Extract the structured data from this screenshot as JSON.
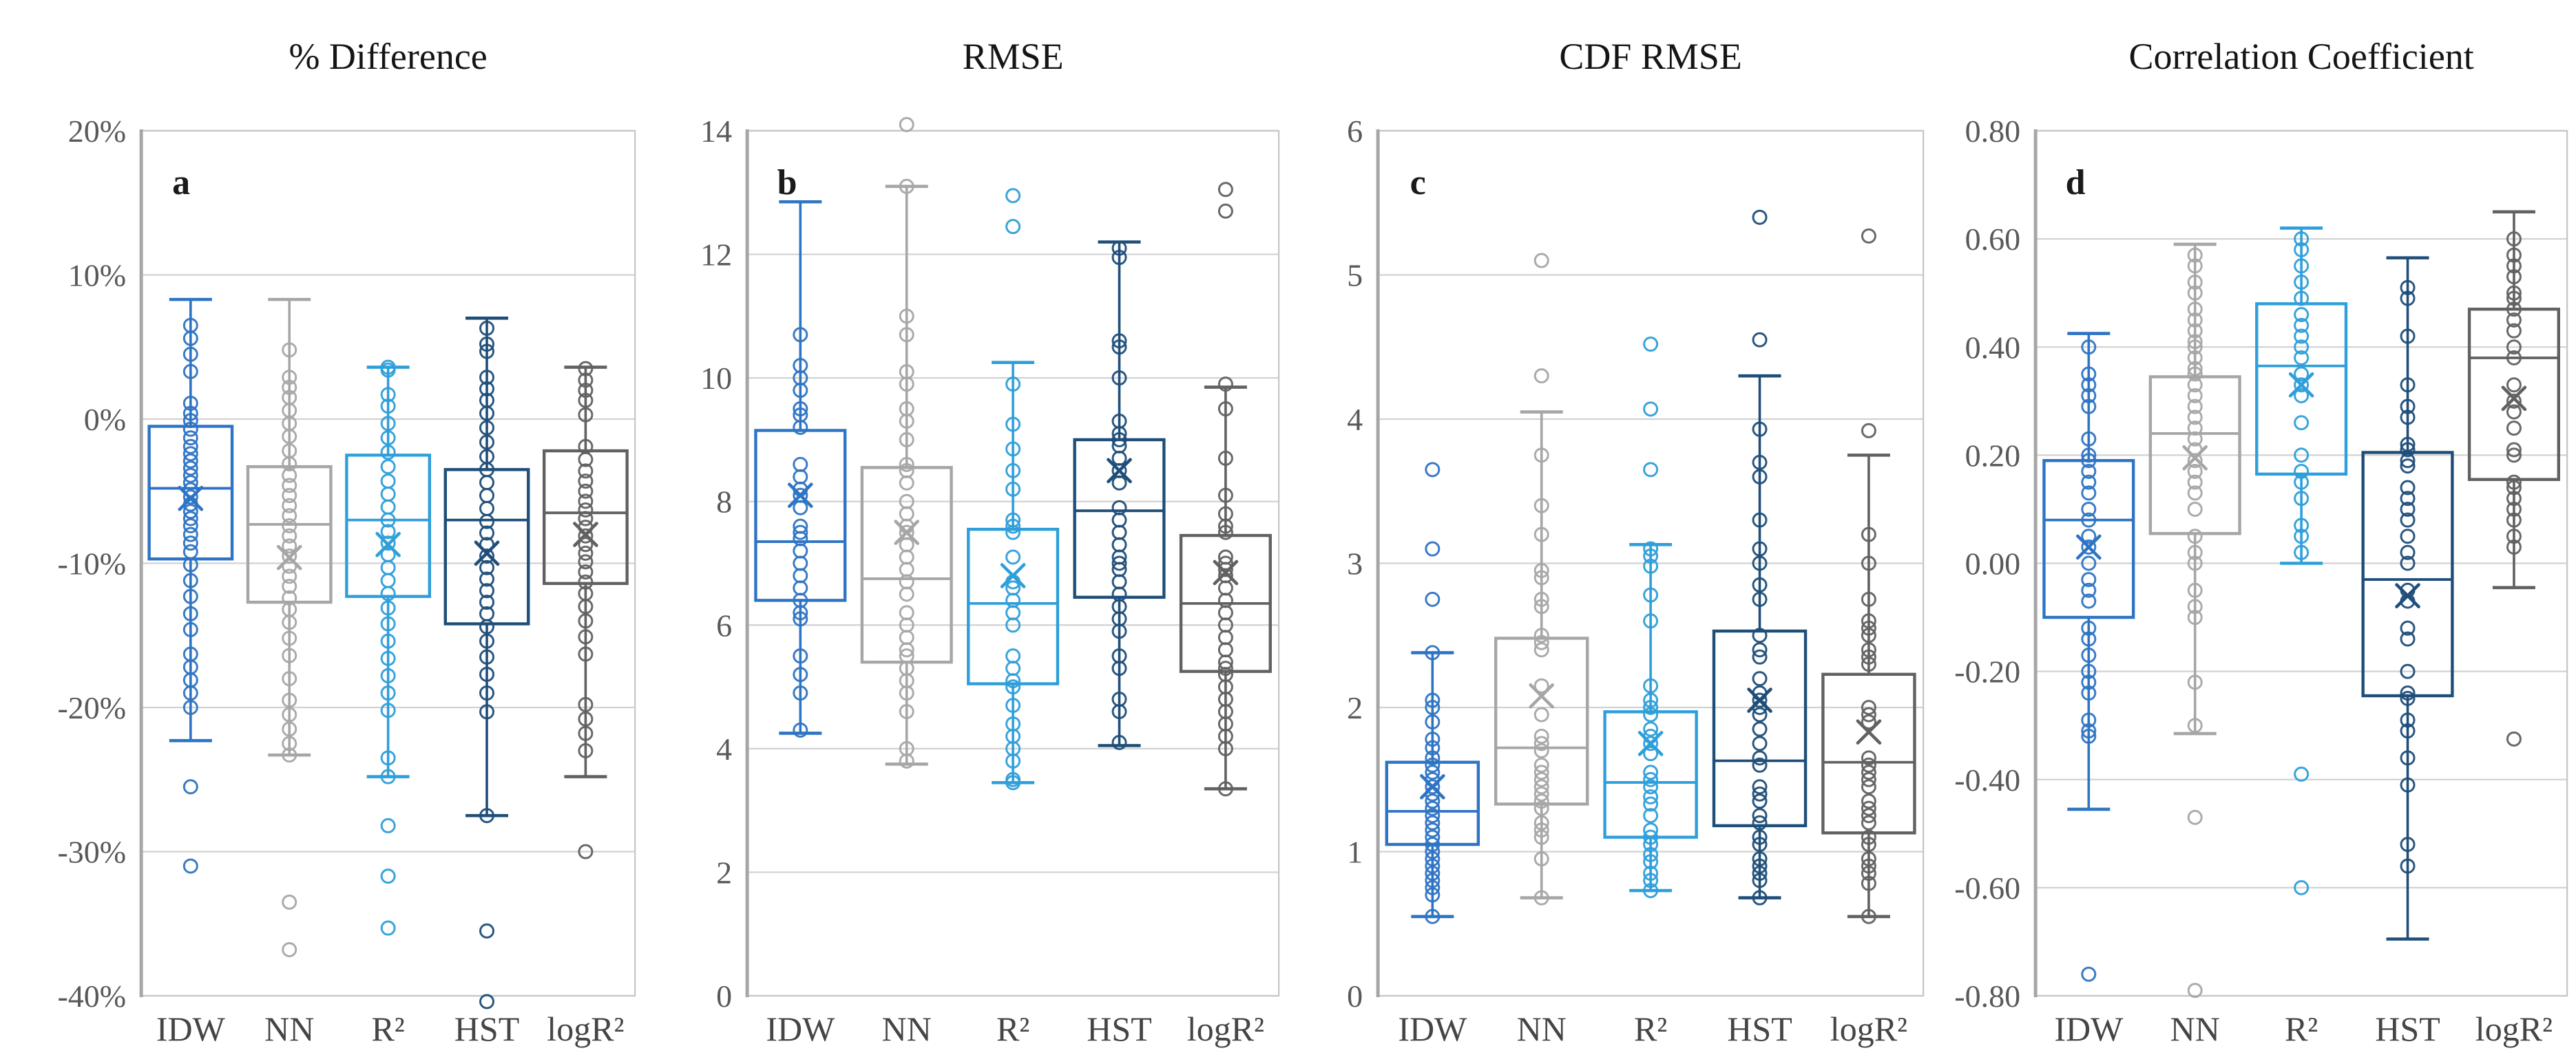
{
  "figure": {
    "background": "#FFFFFF",
    "grid_color": "#D2D2D2",
    "border_color": "#C6C6C6",
    "axis_line_color": "#A6A6A6",
    "tick_text_color": "#595959",
    "title_text_color": "#151515",
    "panel_letter_color": "#1A1A1A",
    "xlabel_text_color": "#454545"
  },
  "chart_data": [
    {
      "type": "box",
      "panel_label": "a",
      "title": "% Difference",
      "categories": [
        "IDW",
        "NN",
        "R²",
        "HST",
        "logR²"
      ],
      "ylim": [
        -40,
        20
      ],
      "ytick_step": 10,
      "ytick_labels": [
        "20%",
        "10%",
        "0%",
        "-10%",
        "-20%",
        "-30%",
        "-40%"
      ],
      "grid": true,
      "legend": "none",
      "series": [
        {
          "name": "IDW",
          "color": "#2E74C4",
          "whisker_low": -22.3,
          "q1": -9.7,
          "median": -4.8,
          "q3": -0.5,
          "whisker_high": 8.3,
          "mean": -5.5,
          "points": [
            6.5,
            5.6,
            4.5,
            3.3,
            1.1,
            0.4,
            -0.1,
            -0.7,
            -1.3,
            -1.9,
            -2.4,
            -2.9,
            -3.4,
            -3.9,
            -4.4,
            -4.9,
            -5.4,
            -5.9,
            -6.4,
            -6.9,
            -7.4,
            -8.0,
            -8.6,
            -9.2,
            -10.1,
            -11.2,
            -12.3,
            -13.5,
            -14.6,
            -16.3,
            -17.2,
            -18.1,
            -19.0,
            -20.0,
            -25.5,
            -31.0
          ]
        },
        {
          "name": "NN",
          "color": "#A6A6A6",
          "whisker_low": -23.3,
          "q1": -12.7,
          "median": -7.3,
          "q3": -3.3,
          "whisker_high": 8.3,
          "mean": -9.6,
          "points": [
            4.8,
            2.9,
            2.2,
            1.5,
            0.6,
            -0.3,
            -1.2,
            -2.2,
            -3.1,
            -3.9,
            -4.6,
            -5.3,
            -6.0,
            -6.7,
            -7.4,
            -8.1,
            -8.8,
            -9.5,
            -10.2,
            -10.9,
            -11.6,
            -12.4,
            -13.2,
            -14.1,
            -15.2,
            -16.4,
            -18.0,
            -19.5,
            -20.5,
            -21.5,
            -22.5,
            -23.3,
            -33.5,
            -36.8
          ]
        },
        {
          "name": "R²",
          "color": "#2E9FDA",
          "whisker_low": -24.8,
          "q1": -12.3,
          "median": -7.0,
          "q3": -2.5,
          "whisker_high": 3.6,
          "mean": -8.7,
          "points": [
            3.6,
            3.4,
            1.7,
            0.9,
            -0.3,
            -1.3,
            -2.3,
            -3.3,
            -4.3,
            -5.2,
            -6.1,
            -7.0,
            -7.8,
            -8.6,
            -9.4,
            -10.3,
            -11.2,
            -12.1,
            -13.1,
            -14.2,
            -15.4,
            -16.6,
            -17.8,
            -19.0,
            -20.2,
            -23.5,
            -24.8,
            -28.2,
            -31.7,
            -35.3
          ]
        },
        {
          "name": "HST",
          "color": "#1F4E79",
          "whisker_low": -27.5,
          "q1": -14.2,
          "median": -7.0,
          "q3": -3.5,
          "whisker_high": 7.0,
          "mean": -9.3,
          "points": [
            6.3,
            5.2,
            4.7,
            2.9,
            2.1,
            1.3,
            0.4,
            -0.6,
            -1.6,
            -2.6,
            -3.5,
            -4.4,
            -5.3,
            -6.2,
            -7.1,
            -7.9,
            -8.7,
            -9.5,
            -10.3,
            -11.1,
            -11.9,
            -12.7,
            -13.5,
            -14.4,
            -15.4,
            -16.5,
            -17.7,
            -19.0,
            -20.3,
            -27.5,
            -35.5,
            -40.4
          ]
        },
        {
          "name": "logR²",
          "color": "#616161",
          "whisker_low": -24.8,
          "q1": -11.4,
          "median": -6.5,
          "q3": -2.2,
          "whisker_high": 3.6,
          "mean": -8.0,
          "points": [
            3.5,
            2.7,
            2.0,
            1.3,
            0.3,
            -1.9,
            -2.8,
            -3.6,
            -4.3,
            -5.0,
            -5.7,
            -6.3,
            -6.9,
            -7.5,
            -8.1,
            -8.7,
            -9.3,
            -9.9,
            -10.6,
            -11.3,
            -12.1,
            -13.0,
            -14.0,
            -15.1,
            -16.3,
            -19.8,
            -20.8,
            -21.8,
            -23.0,
            -30.0
          ]
        }
      ]
    },
    {
      "type": "box",
      "panel_label": "b",
      "title": "RMSE",
      "categories": [
        "IDW",
        "NN",
        "R²",
        "HST",
        "logR²"
      ],
      "ylim": [
        0,
        14
      ],
      "ytick_step": 2,
      "ytick_labels": [
        "14",
        "12",
        "10",
        "8",
        "6",
        "4",
        "2",
        "0"
      ],
      "grid": true,
      "legend": "none",
      "series": [
        {
          "name": "IDW",
          "color": "#2E74C4",
          "whisker_low": 4.25,
          "q1": 6.4,
          "median": 7.35,
          "q3": 9.15,
          "whisker_high": 12.85,
          "mean": 8.1,
          "points": [
            10.7,
            10.2,
            10.0,
            9.8,
            9.5,
            9.4,
            9.2,
            8.6,
            8.4,
            8.2,
            8.1,
            7.9,
            7.6,
            7.5,
            7.4,
            7.2,
            7.0,
            6.8,
            6.6,
            6.4,
            6.2,
            6.1,
            5.5,
            5.2,
            4.9,
            4.3
          ]
        },
        {
          "name": "NN",
          "color": "#A6A6A6",
          "whisker_low": 3.75,
          "q1": 5.4,
          "median": 6.75,
          "q3": 8.55,
          "whisker_high": 13.1,
          "mean": 7.5,
          "points": [
            14.1,
            13.1,
            11.0,
            10.7,
            10.1,
            9.9,
            9.5,
            9.3,
            9.0,
            8.6,
            8.5,
            8.3,
            8.0,
            7.8,
            7.6,
            7.5,
            7.3,
            7.1,
            6.9,
            6.7,
            6.5,
            6.2,
            6.0,
            5.8,
            5.6,
            5.5,
            5.3,
            5.1,
            4.9,
            4.6,
            4.0,
            3.8
          ]
        },
        {
          "name": "R²",
          "color": "#2E9FDA",
          "whisker_low": 3.45,
          "q1": 5.05,
          "median": 6.35,
          "q3": 7.55,
          "whisker_high": 10.25,
          "mean": 6.8,
          "points": [
            12.95,
            12.45,
            9.9,
            9.25,
            8.85,
            8.5,
            8.2,
            7.7,
            7.6,
            7.5,
            7.1,
            6.7,
            6.6,
            6.4,
            6.2,
            6.0,
            5.5,
            5.3,
            5.1,
            5.0,
            4.7,
            4.4,
            4.2,
            4.0,
            3.8,
            3.5,
            3.45
          ]
        },
        {
          "name": "HST",
          "color": "#1F4E79",
          "whisker_low": 4.05,
          "q1": 6.45,
          "median": 7.85,
          "q3": 9.0,
          "whisker_high": 12.2,
          "mean": 8.5,
          "points": [
            12.1,
            11.95,
            10.6,
            10.5,
            10.0,
            9.3,
            9.1,
            9.0,
            8.9,
            8.7,
            8.5,
            8.3,
            7.9,
            7.7,
            7.5,
            7.3,
            7.1,
            7.0,
            6.9,
            6.7,
            6.5,
            6.3,
            6.1,
            5.9,
            5.5,
            5.3,
            4.8,
            4.6,
            4.1
          ]
        },
        {
          "name": "logR²",
          "color": "#616161",
          "whisker_low": 3.35,
          "q1": 5.25,
          "median": 6.35,
          "q3": 7.45,
          "whisker_high": 9.85,
          "mean": 6.85,
          "points": [
            13.05,
            12.7,
            9.9,
            9.5,
            8.7,
            8.1,
            7.8,
            7.6,
            7.5,
            7.1,
            7.0,
            6.9,
            6.8,
            6.6,
            6.4,
            6.2,
            6.0,
            5.8,
            5.6,
            5.4,
            5.3,
            5.2,
            5.0,
            4.8,
            4.6,
            4.4,
            4.2,
            4.0,
            3.35
          ]
        }
      ]
    },
    {
      "type": "box",
      "panel_label": "c",
      "title": "CDF RMSE",
      "categories": [
        "IDW",
        "NN",
        "R²",
        "HST",
        "logR²"
      ],
      "ylim": [
        0,
        6
      ],
      "ytick_step": 1,
      "ytick_labels": [
        "6",
        "5",
        "4",
        "3",
        "2",
        "1",
        "0"
      ],
      "grid": true,
      "legend": "none",
      "series": [
        {
          "name": "IDW",
          "color": "#2E74C4",
          "whisker_low": 0.55,
          "q1": 1.05,
          "median": 1.28,
          "q3": 1.62,
          "whisker_high": 2.38,
          "mean": 1.45,
          "points": [
            3.65,
            3.1,
            2.75,
            2.38,
            2.05,
            2.0,
            1.9,
            1.78,
            1.72,
            1.65,
            1.6,
            1.55,
            1.5,
            1.45,
            1.4,
            1.35,
            1.3,
            1.25,
            1.2,
            1.15,
            1.1,
            1.05,
            1.0,
            0.95,
            0.9,
            0.85,
            0.8,
            0.75,
            0.7,
            0.55
          ]
        },
        {
          "name": "NN",
          "color": "#A6A6A6",
          "whisker_low": 0.68,
          "q1": 1.33,
          "median": 1.72,
          "q3": 2.48,
          "whisker_high": 4.05,
          "mean": 2.08,
          "points": [
            5.1,
            4.3,
            3.75,
            3.4,
            3.2,
            2.95,
            2.9,
            2.75,
            2.7,
            2.5,
            2.45,
            2.4,
            2.15,
            1.95,
            1.8,
            1.75,
            1.7,
            1.6,
            1.55,
            1.5,
            1.45,
            1.4,
            1.35,
            1.3,
            1.2,
            1.15,
            1.1,
            0.95,
            0.68
          ]
        },
        {
          "name": "R²",
          "color": "#2E9FDA",
          "whisker_low": 0.73,
          "q1": 1.1,
          "median": 1.48,
          "q3": 1.97,
          "whisker_high": 3.13,
          "mean": 1.75,
          "points": [
            4.52,
            4.07,
            3.65,
            3.1,
            3.05,
            2.98,
            2.78,
            2.6,
            2.15,
            2.05,
            2.0,
            1.95,
            1.85,
            1.8,
            1.75,
            1.68,
            1.55,
            1.5,
            1.45,
            1.38,
            1.33,
            1.25,
            1.15,
            1.1,
            1.05,
            0.98,
            0.93,
            0.85,
            0.8,
            0.73
          ]
        },
        {
          "name": "HST",
          "color": "#1F4E79",
          "whisker_low": 0.68,
          "q1": 1.18,
          "median": 1.63,
          "q3": 2.53,
          "whisker_high": 4.3,
          "mean": 2.05,
          "points": [
            5.4,
            4.55,
            3.93,
            3.7,
            3.6,
            3.3,
            3.1,
            3.0,
            2.85,
            2.75,
            2.5,
            2.4,
            2.35,
            2.2,
            2.1,
            2.05,
            2.0,
            1.95,
            1.85,
            1.75,
            1.65,
            1.6,
            1.45,
            1.4,
            1.35,
            1.25,
            1.2,
            1.1,
            1.05,
            0.95,
            0.9,
            0.85,
            0.8,
            0.68
          ]
        },
        {
          "name": "logR²",
          "color": "#616161",
          "whisker_low": 0.55,
          "q1": 1.13,
          "median": 1.62,
          "q3": 2.23,
          "whisker_high": 3.75,
          "mean": 1.83,
          "points": [
            5.27,
            3.92,
            3.2,
            3.0,
            2.75,
            2.6,
            2.55,
            2.5,
            2.4,
            2.35,
            2.3,
            2.0,
            1.95,
            1.9,
            1.65,
            1.6,
            1.55,
            1.5,
            1.45,
            1.35,
            1.3,
            1.25,
            1.2,
            1.1,
            1.05,
            0.95,
            0.9,
            0.85,
            0.78,
            0.55
          ]
        }
      ]
    },
    {
      "type": "box",
      "panel_label": "d",
      "title": "Correlation Coefficient",
      "categories": [
        "IDW",
        "NN",
        "R²",
        "HST",
        "logR²"
      ],
      "ylim": [
        -0.8,
        0.8
      ],
      "ytick_step": 0.2,
      "ytick_labels": [
        "0.80",
        "0.60",
        "0.40",
        "0.20",
        "0.00",
        "-0.20",
        "-0.40",
        "-0.60",
        "-0.80"
      ],
      "grid": true,
      "legend": "none",
      "series": [
        {
          "name": "IDW",
          "color": "#2E74C4",
          "whisker_low": -0.455,
          "q1": -0.1,
          "median": 0.08,
          "q3": 0.19,
          "whisker_high": 0.425,
          "mean": 0.03,
          "points": [
            0.4,
            0.35,
            0.33,
            0.31,
            0.29,
            0.23,
            0.2,
            0.19,
            0.17,
            0.15,
            0.13,
            0.1,
            0.08,
            0.05,
            0.03,
            0.0,
            -0.03,
            -0.05,
            -0.07,
            -0.12,
            -0.14,
            -0.17,
            -0.2,
            -0.22,
            -0.24,
            -0.29,
            -0.31,
            -0.32,
            -0.76
          ]
        },
        {
          "name": "NN",
          "color": "#A6A6A6",
          "whisker_low": -0.315,
          "q1": 0.055,
          "median": 0.24,
          "q3": 0.345,
          "whisker_high": 0.59,
          "mean": 0.195,
          "points": [
            0.57,
            0.55,
            0.52,
            0.5,
            0.47,
            0.45,
            0.43,
            0.41,
            0.4,
            0.38,
            0.36,
            0.35,
            0.33,
            0.31,
            0.29,
            0.27,
            0.25,
            0.23,
            0.21,
            0.19,
            0.17,
            0.15,
            0.13,
            0.1,
            0.05,
            0.02,
            0.0,
            -0.05,
            -0.08,
            -0.1,
            -0.22,
            -0.3,
            -0.47,
            -0.79
          ]
        },
        {
          "name": "R²",
          "color": "#2E9FDA",
          "whisker_low": 0.0,
          "q1": 0.165,
          "median": 0.365,
          "q3": 0.48,
          "whisker_high": 0.62,
          "mean": 0.33,
          "points": [
            0.6,
            0.58,
            0.55,
            0.52,
            0.49,
            0.46,
            0.44,
            0.42,
            0.4,
            0.38,
            0.35,
            0.33,
            0.31,
            0.26,
            0.2,
            0.17,
            0.15,
            0.12,
            0.07,
            0.05,
            0.02,
            -0.39,
            -0.6
          ]
        },
        {
          "name": "HST",
          "color": "#1F4E79",
          "whisker_low": -0.695,
          "q1": -0.245,
          "median": -0.03,
          "q3": 0.205,
          "whisker_high": 0.565,
          "mean": -0.06,
          "points": [
            0.51,
            0.49,
            0.42,
            0.33,
            0.29,
            0.27,
            0.22,
            0.21,
            0.19,
            0.18,
            0.14,
            0.12,
            0.1,
            0.08,
            0.05,
            0.02,
            0.0,
            -0.05,
            -0.07,
            -0.12,
            -0.14,
            -0.2,
            -0.24,
            -0.25,
            -0.29,
            -0.31,
            -0.36,
            -0.41,
            -0.52,
            -0.56
          ]
        },
        {
          "name": "logR²",
          "color": "#616161",
          "whisker_low": -0.045,
          "q1": 0.155,
          "median": 0.38,
          "q3": 0.47,
          "whisker_high": 0.65,
          "mean": 0.305,
          "points": [
            0.6,
            0.57,
            0.55,
            0.53,
            0.5,
            0.49,
            0.47,
            0.45,
            0.43,
            0.4,
            0.38,
            0.33,
            0.3,
            0.28,
            0.25,
            0.21,
            0.2,
            0.15,
            0.14,
            0.12,
            0.1,
            0.08,
            0.05,
            0.03,
            -0.325
          ]
        }
      ]
    }
  ]
}
